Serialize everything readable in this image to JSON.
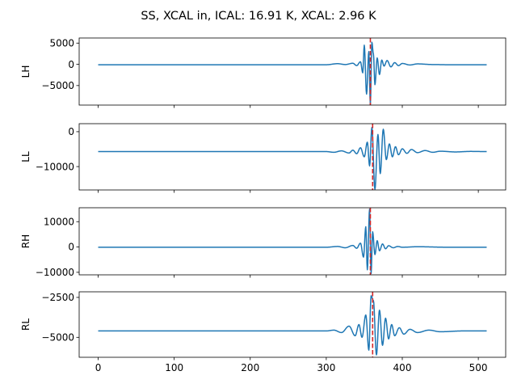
{
  "figure": {
    "title": "SS, XCAL in, ICAL: 16.91 K, XCAL: 2.96 K"
  },
  "colors": {
    "line": "#1f77b4",
    "marker": "#d62728",
    "background": "#ffffff"
  },
  "chart_data": [
    {
      "type": "line",
      "ylabel": "LH",
      "xlim": [
        -25,
        536
      ],
      "ylim": [
        -9600,
        6200
      ],
      "xticks": [
        0,
        100,
        200,
        300,
        400,
        500
      ],
      "yticks": [
        -5000,
        0,
        5000
      ],
      "ytick_labels": [
        "−5000",
        "0",
        "5000"
      ],
      "baseline": -100,
      "peak_index": 358,
      "marker_x": 358,
      "shape": [
        [
          0,
          -100
        ],
        [
          300,
          -100
        ],
        [
          315,
          150
        ],
        [
          325,
          -50
        ],
        [
          335,
          250
        ],
        [
          340,
          -300
        ],
        [
          345,
          600
        ],
        [
          348,
          -2000
        ],
        [
          350,
          4500
        ],
        [
          353,
          -7000
        ],
        [
          356,
          3000
        ],
        [
          358,
          -9500
        ],
        [
          360,
          5200
        ],
        [
          362,
          2500
        ],
        [
          364,
          -4800
        ],
        [
          367,
          1500
        ],
        [
          370,
          -2400
        ],
        [
          373,
          1000
        ],
        [
          376,
          -400
        ],
        [
          380,
          900
        ],
        [
          385,
          -600
        ],
        [
          390,
          400
        ],
        [
          395,
          -300
        ],
        [
          400,
          200
        ],
        [
          410,
          -150
        ],
        [
          420,
          100
        ],
        [
          440,
          -50
        ],
        [
          460,
          -100
        ],
        [
          511,
          -100
        ]
      ]
    },
    {
      "type": "line",
      "ylabel": "LL",
      "xlim": [
        -25,
        536
      ],
      "ylim": [
        -16700,
        2300
      ],
      "xticks": [
        0,
        100,
        200,
        300,
        400,
        500
      ],
      "yticks": [
        -10000,
        0
      ],
      "ytick_labels": [
        "−10000",
        "0"
      ],
      "baseline": -5700,
      "peak_index": 360,
      "marker_x": 361,
      "shape": [
        [
          0,
          -5700
        ],
        [
          300,
          -5700
        ],
        [
          310,
          -5900
        ],
        [
          320,
          -5500
        ],
        [
          330,
          -6100
        ],
        [
          335,
          -5300
        ],
        [
          340,
          -6300
        ],
        [
          345,
          -4600
        ],
        [
          350,
          -7200
        ],
        [
          354,
          -3000
        ],
        [
          357,
          -9800
        ],
        [
          360,
          1200
        ],
        [
          364,
          -16500
        ],
        [
          368,
          -800
        ],
        [
          371,
          -12000
        ],
        [
          375,
          700
        ],
        [
          379,
          -8000
        ],
        [
          383,
          -3500
        ],
        [
          387,
          -7200
        ],
        [
          391,
          -4300
        ],
        [
          395,
          -6600
        ],
        [
          400,
          -4900
        ],
        [
          406,
          -6200
        ],
        [
          412,
          -5100
        ],
        [
          420,
          -6000
        ],
        [
          430,
          -5400
        ],
        [
          440,
          -5900
        ],
        [
          450,
          -5600
        ],
        [
          470,
          -5800
        ],
        [
          490,
          -5650
        ],
        [
          511,
          -5700
        ]
      ]
    },
    {
      "type": "line",
      "ylabel": "RH",
      "xlim": [
        -25,
        536
      ],
      "ylim": [
        -11000,
        15500
      ],
      "xticks": [
        0,
        100,
        200,
        300,
        400,
        500
      ],
      "yticks": [
        -10000,
        0,
        10000
      ],
      "ytick_labels": [
        "−10000",
        "0",
        "10000"
      ],
      "baseline": -100,
      "peak_index": 357,
      "marker_x": 358,
      "shape": [
        [
          0,
          -100
        ],
        [
          300,
          -100
        ],
        [
          315,
          200
        ],
        [
          325,
          -300
        ],
        [
          335,
          600
        ],
        [
          340,
          -500
        ],
        [
          345,
          1500
        ],
        [
          349,
          -4000
        ],
        [
          352,
          8000
        ],
        [
          354,
          -9000
        ],
        [
          357,
          15000
        ],
        [
          359,
          -10500
        ],
        [
          361,
          6000
        ],
        [
          364,
          -3000
        ],
        [
          367,
          2500
        ],
        [
          370,
          -1500
        ],
        [
          374,
          1200
        ],
        [
          378,
          -700
        ],
        [
          382,
          500
        ],
        [
          388,
          -300
        ],
        [
          394,
          200
        ],
        [
          400,
          -100
        ],
        [
          420,
          100
        ],
        [
          460,
          -100
        ],
        [
          511,
          -100
        ]
      ]
    },
    {
      "type": "line",
      "ylabel": "RL",
      "xlim": [
        -25,
        536
      ],
      "ylim": [
        -6250,
        -2150
      ],
      "xticks": [
        0,
        100,
        200,
        300,
        400,
        500
      ],
      "yticks": [
        -5000,
        -2500
      ],
      "ytick_labels": [
        "−5000",
        "−2500"
      ],
      "xtick_labels": [
        "0",
        "100",
        "200",
        "300",
        "400",
        "500"
      ],
      "baseline": -4600,
      "peak_index": 360,
      "marker_x": 361,
      "shape": [
        [
          0,
          -4600
        ],
        [
          300,
          -4600
        ],
        [
          310,
          -4550
        ],
        [
          320,
          -4700
        ],
        [
          330,
          -4300
        ],
        [
          338,
          -4900
        ],
        [
          343,
          -4200
        ],
        [
          347,
          -5000
        ],
        [
          352,
          -3600
        ],
        [
          356,
          -5800
        ],
        [
          359,
          -2400
        ],
        [
          362,
          -2700
        ],
        [
          366,
          -6100
        ],
        [
          370,
          -3300
        ],
        [
          374,
          -5500
        ],
        [
          378,
          -3800
        ],
        [
          382,
          -5100
        ],
        [
          386,
          -4200
        ],
        [
          390,
          -4900
        ],
        [
          396,
          -4400
        ],
        [
          402,
          -4800
        ],
        [
          410,
          -4500
        ],
        [
          420,
          -4700
        ],
        [
          435,
          -4550
        ],
        [
          450,
          -4650
        ],
        [
          480,
          -4600
        ],
        [
          511,
          -4600
        ]
      ]
    }
  ]
}
